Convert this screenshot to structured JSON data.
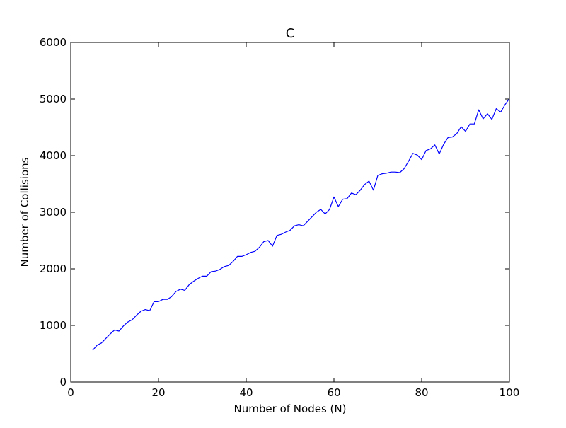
{
  "chart_data": {
    "type": "line",
    "title": "C",
    "xlabel": "Number of Nodes (N)",
    "ylabel": "Number of Collisions",
    "xlim": [
      0,
      100
    ],
    "ylim": [
      0,
      6000
    ],
    "xticks": [
      0,
      20,
      40,
      60,
      80,
      100
    ],
    "yticks": [
      0,
      1000,
      2000,
      3000,
      4000,
      5000,
      6000
    ],
    "xtick_labels": [
      "0",
      "20",
      "40",
      "60",
      "80",
      "100"
    ],
    "ytick_labels": [
      "0",
      "1000",
      "2000",
      "3000",
      "4000",
      "5000",
      "6000"
    ],
    "grid": false,
    "line_color": "#0000ff",
    "series": [
      {
        "x": [
          5,
          6,
          7,
          8,
          9,
          10,
          11,
          12,
          13,
          14,
          15,
          16,
          17,
          18,
          19,
          20,
          21,
          22,
          23,
          24,
          25,
          26,
          27,
          28,
          29,
          30,
          31,
          32,
          33,
          34,
          35,
          36,
          37,
          38,
          39,
          40,
          41,
          42,
          43,
          44,
          45,
          46,
          47,
          48,
          49,
          50,
          51,
          52,
          53,
          54,
          55,
          56,
          57,
          58,
          59,
          60,
          61,
          62,
          63,
          64,
          65,
          66,
          67,
          68,
          69,
          70,
          71,
          72,
          73,
          74,
          75,
          76,
          77,
          78,
          79,
          80,
          81,
          82,
          83,
          84,
          85,
          86,
          87,
          88,
          89,
          90,
          91,
          92,
          93,
          94,
          95,
          96,
          97,
          98,
          99,
          100
        ],
        "values": [
          560,
          650,
          690,
          770,
          850,
          920,
          900,
          990,
          1060,
          1100,
          1180,
          1250,
          1280,
          1260,
          1420,
          1420,
          1460,
          1460,
          1510,
          1600,
          1640,
          1620,
          1720,
          1780,
          1830,
          1870,
          1870,
          1950,
          1960,
          1990,
          2040,
          2060,
          2130,
          2220,
          2220,
          2250,
          2290,
          2310,
          2380,
          2480,
          2500,
          2400,
          2590,
          2610,
          2650,
          2680,
          2760,
          2780,
          2760,
          2840,
          2920,
          3000,
          3050,
          2970,
          3050,
          3270,
          3100,
          3230,
          3240,
          3340,
          3310,
          3390,
          3490,
          3550,
          3390,
          3650,
          3680,
          3690,
          3710,
          3710,
          3700,
          3770,
          3900,
          4040,
          4010,
          3930,
          4090,
          4120,
          4190,
          4030,
          4200,
          4320,
          4330,
          4390,
          4510,
          4430,
          4560,
          4560,
          4810,
          4650,
          4740,
          4640,
          4830,
          4770,
          4900,
          5010
        ]
      }
    ]
  }
}
